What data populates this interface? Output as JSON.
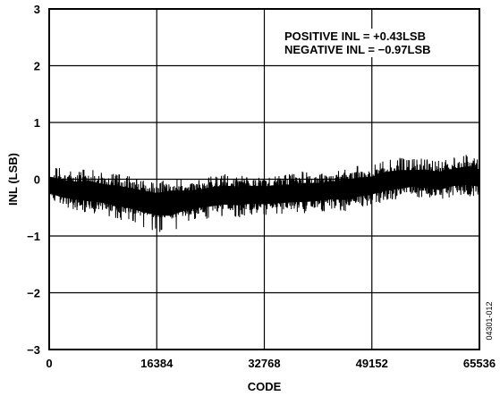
{
  "chart_data": {
    "type": "line",
    "title": "",
    "xlabel": "CODE",
    "ylabel": "INL (LSB)",
    "xlim": [
      0,
      65536
    ],
    "ylim": [
      -3,
      3
    ],
    "x_ticks": [
      "0",
      "16384",
      "32768",
      "49152",
      "65536"
    ],
    "x_tick_values": [
      0,
      16384,
      32768,
      49152,
      65536
    ],
    "y_ticks": [
      "3",
      "2",
      "1",
      "0",
      "−1",
      "−2",
      "−3"
    ],
    "y_tick_values": [
      3,
      2,
      1,
      0,
      -1,
      -2,
      -3
    ],
    "grid": true,
    "annotations": [
      "POSITIVE INL = +0.43LSB",
      "NEGATIVE INL = −0.97LSB"
    ],
    "figure_id": "04301-012",
    "series": [
      {
        "color": "#000000",
        "x": [
          0,
          2048,
          4096,
          6144,
          8192,
          10240,
          12288,
          14336,
          16384,
          18432,
          20480,
          22528,
          24576,
          26624,
          28672,
          30720,
          32768,
          34816,
          36864,
          38912,
          40960,
          43008,
          45056,
          47104,
          49152,
          51200,
          53248,
          55296,
          57344,
          59392,
          61440,
          63488,
          65535
        ],
        "y_center": [
          -0.12,
          -0.18,
          -0.2,
          -0.22,
          -0.25,
          -0.28,
          -0.32,
          -0.36,
          -0.4,
          -0.38,
          -0.36,
          -0.34,
          -0.3,
          -0.28,
          -0.28,
          -0.28,
          -0.27,
          -0.26,
          -0.25,
          -0.24,
          -0.22,
          -0.2,
          -0.19,
          -0.15,
          -0.12,
          -0.05,
          -0.02,
          0.0,
          0.0,
          -0.02,
          0.02,
          0.06,
          0.03
        ],
        "y_max": [
          0.25,
          0.2,
          0.15,
          0.2,
          0.12,
          0.1,
          0.05,
          0.0,
          -0.05,
          0.02,
          0.0,
          0.0,
          0.05,
          0.1,
          0.05,
          0.08,
          0.05,
          0.1,
          0.1,
          0.15,
          0.12,
          0.15,
          0.2,
          0.25,
          0.25,
          0.35,
          0.38,
          0.36,
          0.38,
          0.32,
          0.38,
          0.43,
          0.35
        ],
        "y_min": [
          -0.4,
          -0.5,
          -0.55,
          -0.6,
          -0.62,
          -0.7,
          -0.75,
          -0.85,
          -0.92,
          -0.97,
          -0.8,
          -0.72,
          -0.7,
          -0.65,
          -0.68,
          -0.62,
          -0.65,
          -0.62,
          -0.6,
          -0.6,
          -0.58,
          -0.55,
          -0.58,
          -0.5,
          -0.45,
          -0.4,
          -0.35,
          -0.3,
          -0.35,
          -0.4,
          -0.3,
          -0.3,
          -0.32
        ]
      }
    ]
  }
}
